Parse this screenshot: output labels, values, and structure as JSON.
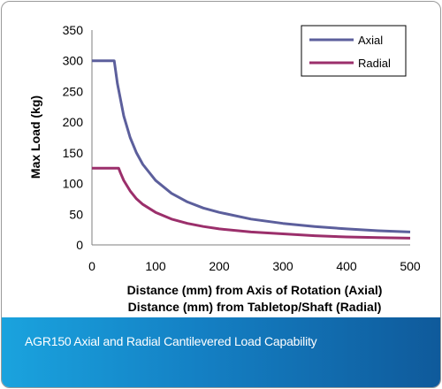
{
  "caption": "AGR150 Axial and Radial Cantilevered Load Capability",
  "chart_data": {
    "type": "line",
    "ylabel": "Max Load (kg)",
    "xlabel_lines": [
      "Distance (mm) from Axis of Rotation (Axial)",
      "Distance (mm) from Tabletop/Shaft (Radial)"
    ],
    "xlim": [
      0,
      500
    ],
    "ylim": [
      0,
      350
    ],
    "x_ticks": [
      "0",
      "100",
      "200",
      "300",
      "400",
      "500"
    ],
    "y_ticks": [
      "0",
      "50",
      "100",
      "150",
      "200",
      "250",
      "300",
      "350"
    ],
    "grid": false,
    "legend_position": "top-right",
    "series": [
      {
        "name": "Axial",
        "color": "#5c5f9c",
        "x": [
          0,
          35,
          40,
          50,
          60,
          70,
          80,
          100,
          125,
          150,
          175,
          200,
          250,
          300,
          350,
          400,
          450,
          500
        ],
        "y": [
          300,
          300,
          263,
          210,
          175,
          150,
          131,
          105,
          84,
          70,
          60,
          53,
          42,
          35,
          30,
          26,
          23,
          21
        ]
      },
      {
        "name": "Radial",
        "color": "#9b2f6b",
        "x": [
          0,
          42,
          45,
          50,
          60,
          70,
          80,
          100,
          125,
          150,
          175,
          200,
          250,
          300,
          350,
          400,
          450,
          500
        ],
        "y": [
          125,
          125,
          117,
          105,
          88,
          75,
          66,
          53,
          42,
          35,
          30,
          26,
          21,
          18,
          15,
          13,
          12,
          11
        ]
      }
    ]
  }
}
